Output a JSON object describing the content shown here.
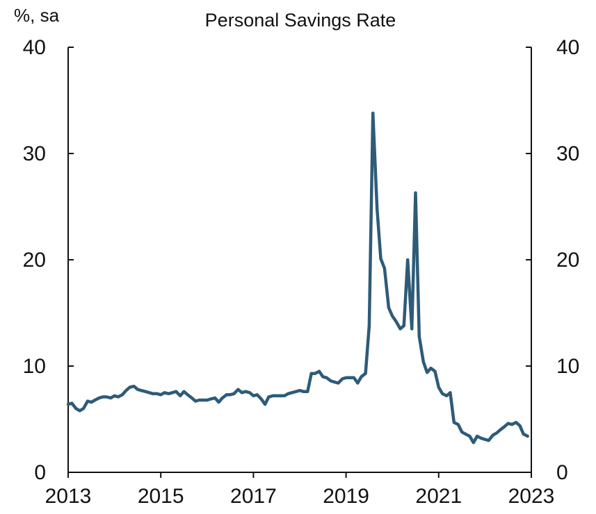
{
  "chart_data": {
    "type": "line",
    "title": "Personal Savings Rate",
    "ylabel": "%, sa",
    "xlabel": "",
    "xlim": [
      2013,
      2023
    ],
    "ylim": [
      0,
      40
    ],
    "x_ticks": [
      "2013",
      "2015",
      "2017",
      "2019",
      "2021",
      "2023"
    ],
    "y_ticks": [
      "0",
      "10",
      "20",
      "30",
      "40"
    ],
    "grid": false,
    "legend": "none",
    "colors": {
      "line": "#2e5b78",
      "axis": "#111111"
    },
    "series": [
      {
        "x": [
          2013.0,
          2013.08,
          2013.17,
          2013.25,
          2013.33,
          2013.42,
          2013.5,
          2013.58,
          2013.67,
          2013.75,
          2013.83,
          2013.92,
          2014.0,
          2014.08,
          2014.17,
          2014.25,
          2014.33,
          2014.42,
          2014.5,
          2014.58,
          2014.67,
          2014.75,
          2014.83,
          2014.92,
          2015.0,
          2015.08,
          2015.17,
          2015.25,
          2015.33,
          2015.42,
          2015.5,
          2015.58,
          2015.67,
          2015.75,
          2015.83,
          2015.92,
          2016.0,
          2016.08,
          2016.17,
          2016.25,
          2016.33,
          2016.42,
          2016.5,
          2016.58,
          2016.67,
          2016.75,
          2016.83,
          2016.92,
          2017.0,
          2017.08,
          2017.17,
          2017.25,
          2017.33,
          2017.42,
          2017.5,
          2017.58,
          2017.67,
          2017.75,
          2017.83,
          2017.92,
          2018.0,
          2018.08,
          2018.17,
          2018.25,
          2018.33,
          2018.42,
          2018.5,
          2018.58,
          2018.67,
          2018.75,
          2018.83,
          2018.92,
          2019.0,
          2019.08,
          2019.17,
          2019.25,
          2019.33,
          2019.42,
          2019.5,
          2019.58,
          2019.67,
          2019.75,
          2019.83,
          2019.92,
          2020.0,
          2020.08,
          2020.17,
          2020.25,
          2020.33,
          2020.42,
          2020.5,
          2020.58,
          2020.67,
          2020.75,
          2020.83,
          2020.92,
          2021.0,
          2021.08,
          2021.17,
          2021.25,
          2021.33,
          2021.42,
          2021.5,
          2021.58,
          2021.67,
          2021.75,
          2021.83,
          2021.92,
          2022.0,
          2022.08,
          2022.17,
          2022.25,
          2022.33,
          2022.42,
          2022.5,
          2022.58,
          2022.67,
          2022.75,
          2022.83,
          2022.92
        ],
        "values": [
          6.4,
          6.5,
          6.0,
          5.8,
          6.0,
          6.7,
          6.6,
          6.8,
          7.0,
          7.1,
          7.1,
          7.0,
          7.2,
          7.1,
          7.3,
          7.7,
          8.0,
          8.1,
          7.8,
          7.7,
          7.6,
          7.5,
          7.4,
          7.4,
          7.3,
          7.5,
          7.4,
          7.5,
          7.6,
          7.2,
          7.6,
          7.3,
          7.0,
          6.7,
          6.8,
          6.8,
          6.8,
          6.9,
          7.0,
          6.6,
          7.0,
          7.3,
          7.3,
          7.4,
          7.8,
          7.5,
          7.6,
          7.5,
          7.2,
          7.3,
          6.9,
          6.4,
          7.1,
          7.2,
          7.2,
          7.2,
          7.2,
          7.4,
          7.5,
          7.6,
          7.7,
          7.6,
          7.6,
          9.3,
          9.3,
          9.5,
          9.0,
          8.9,
          8.6,
          8.5,
          8.4,
          8.8,
          8.9,
          8.9,
          8.9,
          8.4,
          9.0,
          9.3,
          13.8,
          33.8,
          24.8,
          20.1,
          19.2,
          15.5,
          14.7,
          14.2,
          13.5,
          13.8,
          20.0,
          13.5,
          26.3,
          12.8,
          10.4,
          9.4,
          9.8,
          9.5,
          8.0,
          7.4,
          7.2,
          7.5,
          4.7,
          4.5,
          3.8,
          3.6,
          3.4,
          2.8,
          3.4,
          3.2,
          3.1,
          3.0,
          3.5,
          3.7,
          4.0,
          4.3,
          4.6,
          4.5,
          4.7,
          4.4,
          3.6,
          3.4
        ]
      }
    ]
  }
}
